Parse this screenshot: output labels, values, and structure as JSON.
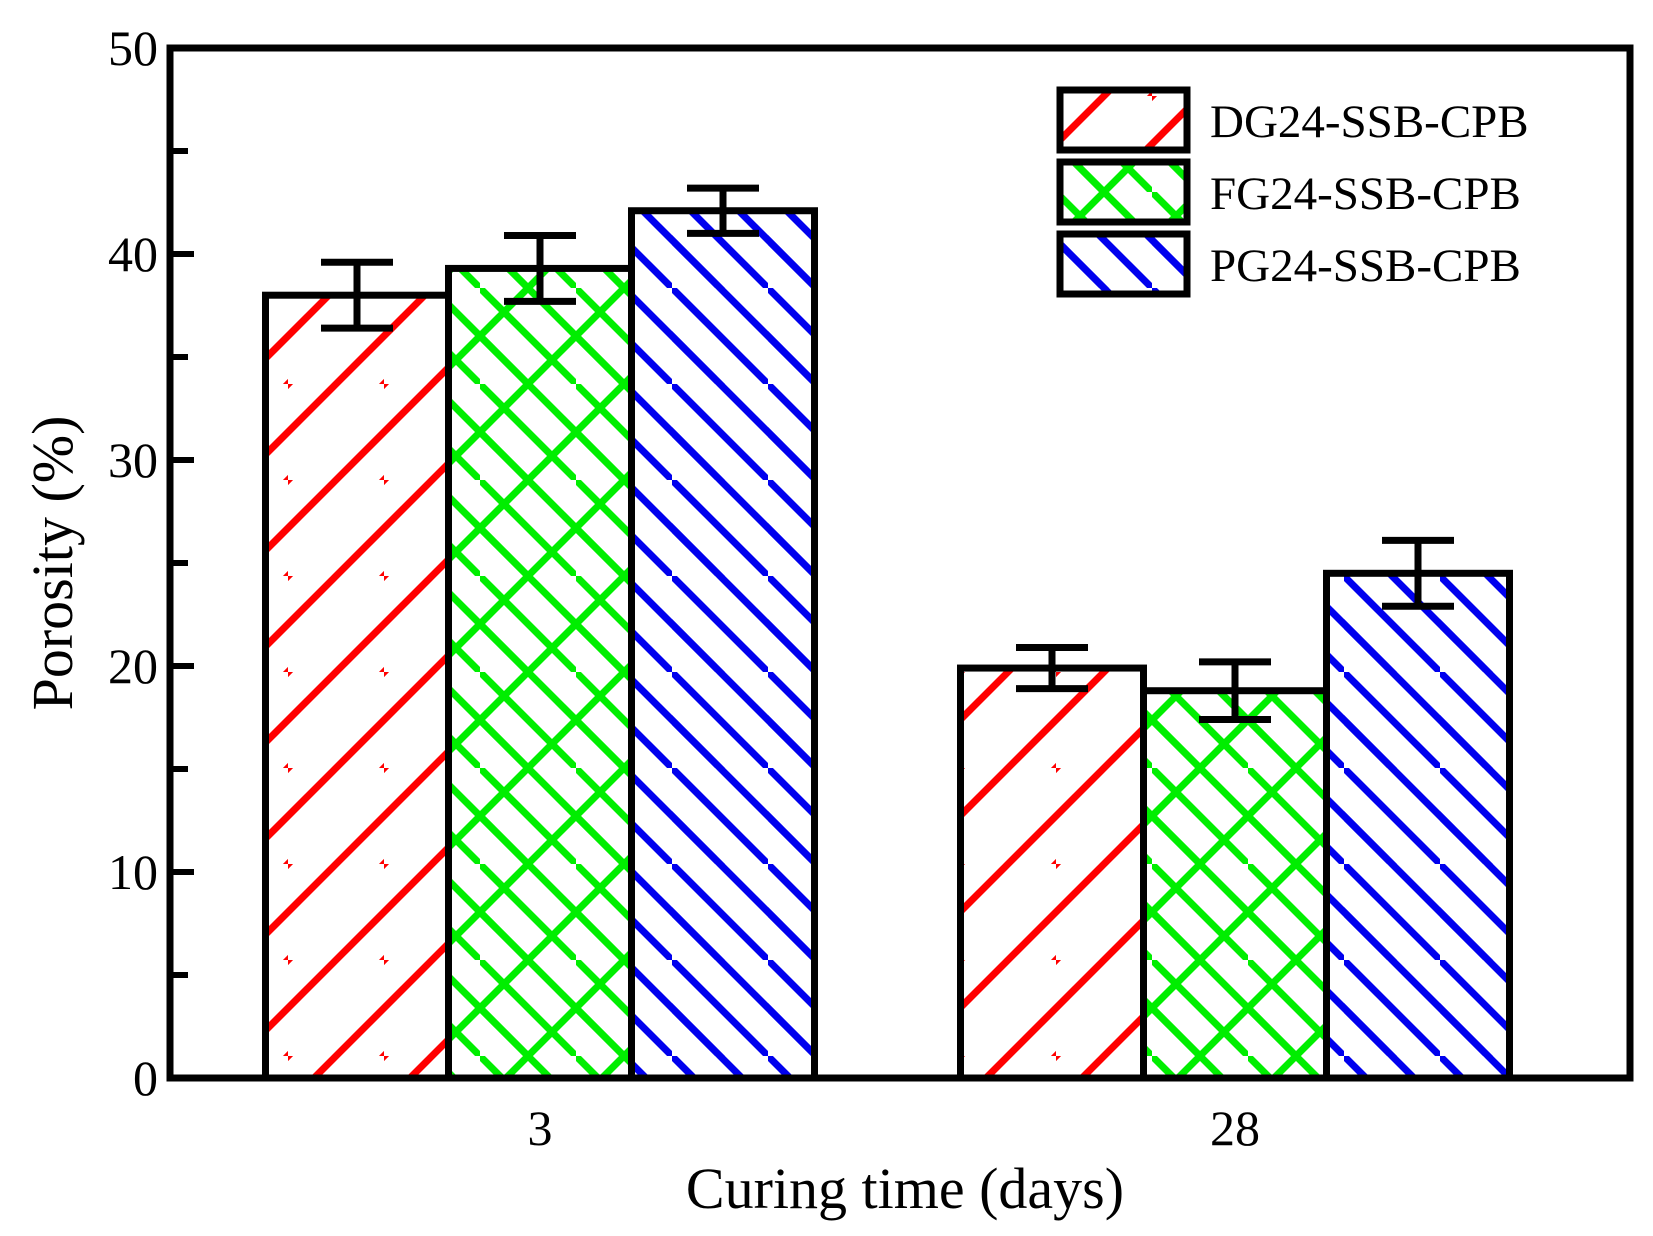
{
  "chart_data": {
    "type": "bar",
    "title": "",
    "xlabel": "Curing time (days)",
    "ylabel": "Porosity (%)",
    "ylim": [
      0,
      50
    ],
    "yticks": [
      "0",
      "10",
      "20",
      "30",
      "40",
      "50"
    ],
    "categories": [
      "3",
      "28"
    ],
    "series": [
      {
        "name": "DG24-SSB-CPB",
        "color": "#ff0000",
        "pattern": "diagonal-up",
        "values": [
          38.0,
          19.9
        ],
        "errors": [
          1.6,
          1.0
        ]
      },
      {
        "name": "FG24-SSB-CPB",
        "color": "#00ee00",
        "pattern": "crosshatch",
        "values": [
          39.3,
          18.8
        ],
        "errors": [
          1.6,
          1.4
        ]
      },
      {
        "name": "PG24-SSB-CPB",
        "color": "#0000ee",
        "pattern": "diagonal-down",
        "values": [
          42.1,
          24.5
        ],
        "errors": [
          1.1,
          1.6
        ]
      }
    ],
    "legend": "top-right",
    "grid": false
  }
}
